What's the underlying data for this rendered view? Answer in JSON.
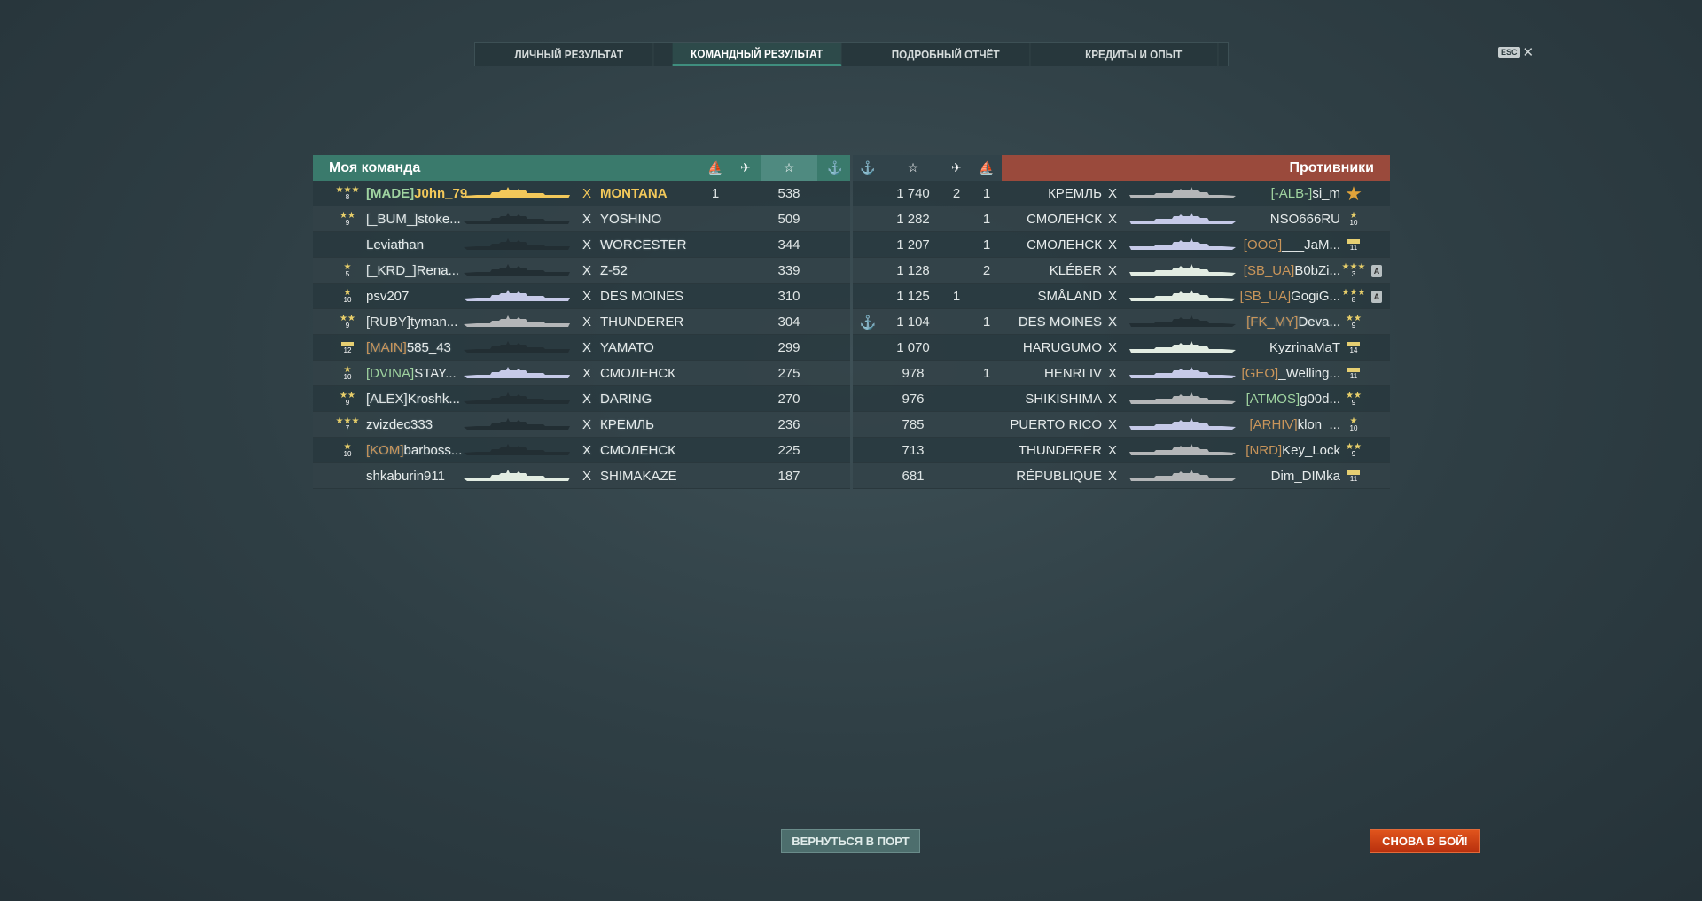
{
  "tabs": [
    {
      "label": "ЛИЧНЫЙ РЕЗУЛЬТАТ"
    },
    {
      "label": "КОМАНДНЫЙ РЕЗУЛЬТАТ",
      "active": true
    },
    {
      "label": "ПОДРОБНЫЙ ОТЧЁТ"
    },
    {
      "label": "КРЕДИТЫ И ОПЫТ"
    }
  ],
  "close": {
    "key": "ESC",
    "icon": "close-icon",
    "glyph": "✕"
  },
  "colors": {
    "my_team": "#3a7a6c",
    "enemies": "#9a4a3c",
    "self": "#f2c85a",
    "clan_green": "#9fd3a0",
    "clan_orange": "#c9955a",
    "dd": "#e2ece2",
    "ca": "#c6cae8",
    "bb": "#b4b6b8",
    "dead": "#222e33"
  },
  "header_icons": [
    "ship-sunk-icon",
    "plane-kill-icon",
    "star-icon",
    "anchor-icon"
  ],
  "header_glyphs": {
    "sunk": "⛵",
    "planes": "✈",
    "star": "☆",
    "anchor": "⚓"
  },
  "my_team": {
    "title": "Моя команда",
    "players": [
      {
        "rank": "3 stars",
        "rank_lvl": "8",
        "clan": "[MADE]",
        "clan_color": "green",
        "name": "J0hn_79",
        "ship": "MONTANA",
        "cls": "self",
        "alive": true,
        "sunk": "1",
        "planes": "",
        "xp": "538",
        "anchor": false,
        "self": true
      },
      {
        "rank": "2 stars",
        "rank_lvl": "9",
        "clan": "[_BUM_]",
        "clan_color": "none",
        "name": "stoke...",
        "ship": "YOSHINO",
        "cls": "bb",
        "alive": false,
        "sunk": "",
        "planes": "",
        "xp": "509"
      },
      {
        "rank": "",
        "rank_lvl": "",
        "clan": "",
        "clan_color": "none",
        "name": "Leviathan",
        "ship": "WORCESTER",
        "cls": "ca",
        "alive": false,
        "sunk": "",
        "planes": "",
        "xp": "344"
      },
      {
        "rank": "1 star",
        "rank_lvl": "5",
        "clan": "[_KRD_]",
        "clan_color": "none",
        "name": "Rena...",
        "ship": "Z-52",
        "cls": "dd",
        "alive": false,
        "sunk": "",
        "planes": "",
        "xp": "339"
      },
      {
        "rank": "1 star",
        "rank_lvl": "10",
        "clan": "",
        "clan_color": "none",
        "name": "psv207",
        "ship": "DES MOINES",
        "cls": "ca",
        "alive": true,
        "sunk": "",
        "planes": "",
        "xp": "310"
      },
      {
        "rank": "2 stars",
        "rank_lvl": "9",
        "clan": "[RUBY]",
        "clan_color": "none",
        "name": "tyman...",
        "ship": "THUNDERER",
        "cls": "bb",
        "alive": true,
        "sunk": "",
        "planes": "",
        "xp": "304"
      },
      {
        "rank": "bar",
        "rank_lvl": "12",
        "clan": "[MAIN]",
        "clan_color": "orange",
        "name": "585_43",
        "ship": "YAMATO",
        "cls": "bb",
        "alive": false,
        "sunk": "",
        "planes": "",
        "xp": "299"
      },
      {
        "rank": "1 star",
        "rank_lvl": "10",
        "clan": "[DVINA]",
        "clan_color": "green",
        "name": "STAY...",
        "ship": "СМОЛЕНСК",
        "cls": "ca",
        "alive": true,
        "sunk": "",
        "planes": "",
        "xp": "275"
      },
      {
        "rank": "2 stars",
        "rank_lvl": "9",
        "clan": "[ALEX]",
        "clan_color": "none",
        "name": "Kroshk...",
        "ship": "DARING",
        "cls": "dd",
        "alive": false,
        "sunk": "",
        "planes": "",
        "xp": "270"
      },
      {
        "rank": "3 stars",
        "rank_lvl": "7",
        "clan": "",
        "clan_color": "none",
        "name": "zvizdec333",
        "ship": "КРЕМЛЬ",
        "cls": "bb",
        "alive": false,
        "sunk": "",
        "planes": "",
        "xp": "236"
      },
      {
        "rank": "1 star",
        "rank_lvl": "10",
        "clan": "[KOM]",
        "clan_color": "orange",
        "name": "barboss...",
        "ship": "СМОЛЕНСК",
        "cls": "ca",
        "alive": false,
        "sunk": "",
        "planes": "",
        "xp": "225"
      },
      {
        "rank": "",
        "rank_lvl": "",
        "clan": "",
        "clan_color": "none",
        "name": "shkaburin911",
        "ship": "SHIMAKAZE",
        "cls": "dd",
        "alive": true,
        "sunk": "",
        "planes": "",
        "xp": "187"
      }
    ]
  },
  "enemies": {
    "title": "Противники",
    "players": [
      {
        "rank": "medal",
        "rank_lvl": "",
        "clan": "[-ALB-]",
        "clan_color": "green",
        "name": "si_m",
        "ship": "КРЕМЛЬ",
        "cls": "bb",
        "alive": true,
        "sunk": "1",
        "planes": "2",
        "xp": "1 740"
      },
      {
        "rank": "1 star",
        "rank_lvl": "10",
        "clan": "",
        "clan_color": "none",
        "name": "NSO666RU",
        "ship": "СМОЛЕНСК",
        "cls": "ca",
        "alive": true,
        "sunk": "1",
        "planes": "",
        "xp": "1 282"
      },
      {
        "rank": "bar",
        "rank_lvl": "11",
        "clan": "[OOO]",
        "clan_color": "orange",
        "name": "___JaM...",
        "ship": "СМОЛЕНСК",
        "cls": "ca",
        "alive": true,
        "sunk": "1",
        "planes": "",
        "xp": "1 207"
      },
      {
        "rank": "3 stars",
        "rank_lvl": "3",
        "clan": "[SB_UA]",
        "clan_color": "orange",
        "name": "B0bZi...",
        "ship": "KLÉBER",
        "cls": "dd",
        "alive": true,
        "sunk": "2",
        "planes": "",
        "xp": "1 128",
        "badge": "A"
      },
      {
        "rank": "3 stars",
        "rank_lvl": "8",
        "clan": "[SB_UA]",
        "clan_color": "orange",
        "name": "GogiG...",
        "ship": "SMÅLAND",
        "cls": "dd",
        "alive": true,
        "sunk": "",
        "planes": "1",
        "xp": "1 125",
        "badge": "A"
      },
      {
        "rank": "2 stars",
        "rank_lvl": "9",
        "clan": "[FK_MY]",
        "clan_color": "orange",
        "name": "Deva...",
        "ship": "DES MOINES",
        "cls": "ca",
        "alive": false,
        "sunk": "1",
        "planes": "",
        "xp": "1 104",
        "anchor": true
      },
      {
        "rank": "bar",
        "rank_lvl": "14",
        "clan": "",
        "clan_color": "none",
        "name": "KyzrinaMaT",
        "ship": "HARUGUMO",
        "cls": "dd",
        "alive": true,
        "sunk": "",
        "planes": "",
        "xp": "1 070"
      },
      {
        "rank": "bar",
        "rank_lvl": "11",
        "clan": "[GEO]",
        "clan_color": "orange",
        "name": "_Welling...",
        "ship": "HENRI IV",
        "cls": "ca",
        "alive": true,
        "sunk": "1",
        "planes": "",
        "xp": "978"
      },
      {
        "rank": "2 stars",
        "rank_lvl": "9",
        "clan": "[ATMOS]",
        "clan_color": "green",
        "name": "g00d...",
        "ship": "SHIKISHIMA",
        "cls": "bb",
        "alive": true,
        "sunk": "",
        "planes": "",
        "xp": "976"
      },
      {
        "rank": "1 star",
        "rank_lvl": "10",
        "clan": "[ARHIV]",
        "clan_color": "orange",
        "name": "klon_...",
        "ship": "PUERTO RICO",
        "cls": "ca",
        "alive": true,
        "sunk": "",
        "planes": "",
        "xp": "785"
      },
      {
        "rank": "2 stars",
        "rank_lvl": "9",
        "clan": "[NRD]",
        "clan_color": "orange",
        "name": "Key_Lock",
        "ship": "THUNDERER",
        "cls": "bb",
        "alive": true,
        "sunk": "",
        "planes": "",
        "xp": "713"
      },
      {
        "rank": "bar",
        "rank_lvl": "11",
        "clan": "",
        "clan_color": "none",
        "name": "Dim_DIMka",
        "ship": "RÉPUBLIQUE",
        "cls": "bb",
        "alive": true,
        "sunk": "",
        "planes": "",
        "xp": "681"
      }
    ]
  },
  "buttons": {
    "back": "ВЕРНУТЬСЯ В ПОРТ",
    "again": "СНОВА В БОЙ!"
  }
}
